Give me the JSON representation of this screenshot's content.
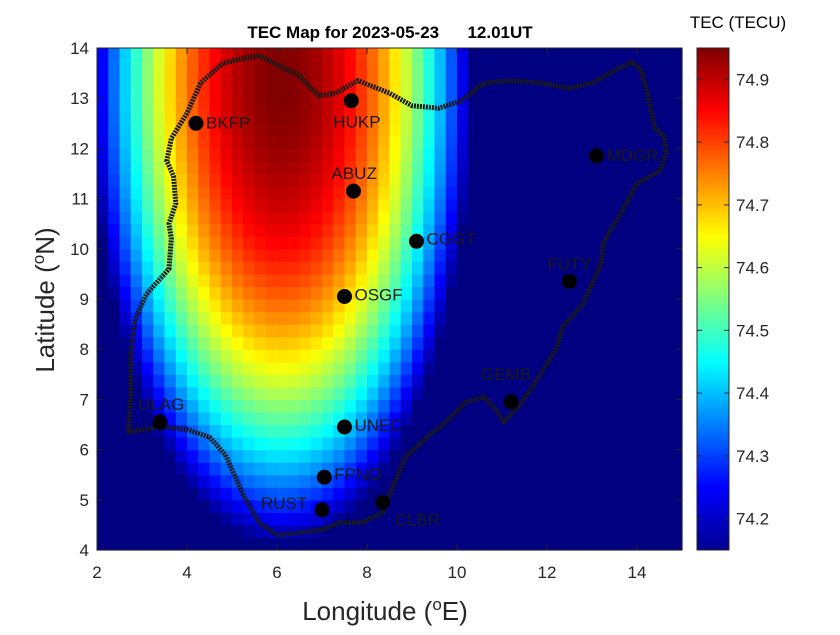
{
  "chart_data": {
    "type": "heatmap",
    "title": "TEC Map for 2023-05-23      12.01UT",
    "xlabel": "Longitude (",
    "xlabel_sup": "o",
    "xlabel_tail": "E)",
    "ylabel": "Latitude (",
    "ylabel_sup": "o",
    "ylabel_tail": "N)",
    "xlim": [
      2,
      15
    ],
    "ylim": [
      4,
      14
    ],
    "xticks": [
      2,
      4,
      6,
      8,
      10,
      12,
      14
    ],
    "yticks": [
      4,
      5,
      6,
      7,
      8,
      9,
      10,
      11,
      12,
      13,
      14
    ],
    "colorbar": {
      "label": "TEC (TECU)",
      "min": 74.15,
      "max": 74.95,
      "ticks": [
        74.2,
        74.3,
        74.4,
        74.5,
        74.6,
        74.7,
        74.8,
        74.9
      ],
      "colormap": "jet"
    },
    "field": {
      "peak_lon": 6.1,
      "peak_lat": 13.4,
      "peak_value": 74.95
    },
    "stations": [
      {
        "name": "BKFP",
        "lon": 4.2,
        "lat": 12.5
      },
      {
        "name": "HUKP",
        "lon": 7.65,
        "lat": 12.95
      },
      {
        "name": "ABUZ",
        "lon": 7.7,
        "lat": 11.15
      },
      {
        "name": "MDGR",
        "lon": 13.1,
        "lat": 11.85
      },
      {
        "name": "CGGT",
        "lon": 9.1,
        "lat": 10.15
      },
      {
        "name": "FUTY",
        "lon": 12.5,
        "lat": 9.35
      },
      {
        "name": "OSGF",
        "lon": 7.5,
        "lat": 9.05
      },
      {
        "name": "GEMB",
        "lon": 11.2,
        "lat": 6.95
      },
      {
        "name": "ULAG",
        "lon": 3.4,
        "lat": 6.55
      },
      {
        "name": "UNEC",
        "lon": 7.5,
        "lat": 6.45
      },
      {
        "name": "FPNO",
        "lon": 7.05,
        "lat": 5.45
      },
      {
        "name": "RUST",
        "lon": 7.0,
        "lat": 4.8
      },
      {
        "name": "CLBR",
        "lon": 8.35,
        "lat": 4.95
      }
    ],
    "boundary": [
      [
        2.7,
        6.35
      ],
      [
        2.75,
        7.1
      ],
      [
        2.75,
        7.9
      ],
      [
        2.85,
        8.6
      ],
      [
        3.1,
        9.1
      ],
      [
        3.6,
        9.6
      ],
      [
        3.65,
        10.2
      ],
      [
        3.6,
        10.5
      ],
      [
        3.75,
        10.9
      ],
      [
        3.7,
        11.45
      ],
      [
        3.55,
        11.75
      ],
      [
        3.65,
        12.2
      ],
      [
        4.0,
        12.7
      ],
      [
        4.15,
        13.0
      ],
      [
        4.3,
        13.3
      ],
      [
        4.8,
        13.7
      ],
      [
        5.3,
        13.8
      ],
      [
        5.6,
        13.85
      ],
      [
        6.15,
        13.6
      ],
      [
        6.5,
        13.45
      ],
      [
        6.75,
        13.2
      ],
      [
        6.95,
        13.05
      ],
      [
        7.3,
        13.1
      ],
      [
        7.8,
        13.35
      ],
      [
        8.5,
        13.1
      ],
      [
        9.0,
        12.85
      ],
      [
        9.6,
        12.8
      ],
      [
        10.1,
        12.95
      ],
      [
        10.6,
        13.3
      ],
      [
        11.2,
        13.35
      ],
      [
        11.9,
        13.3
      ],
      [
        12.5,
        13.2
      ],
      [
        13.0,
        13.3
      ],
      [
        13.6,
        13.6
      ],
      [
        13.9,
        13.72
      ],
      [
        14.1,
        13.55
      ],
      [
        14.25,
        13.0
      ],
      [
        14.4,
        12.4
      ],
      [
        14.6,
        12.25
      ],
      [
        14.65,
        11.9
      ],
      [
        14.5,
        11.55
      ],
      [
        14.0,
        11.3
      ],
      [
        13.7,
        10.8
      ],
      [
        13.4,
        10.35
      ],
      [
        13.25,
        10.1
      ],
      [
        13.2,
        9.7
      ],
      [
        13.0,
        9.3
      ],
      [
        12.8,
        8.9
      ],
      [
        12.35,
        8.45
      ],
      [
        12.2,
        8.0
      ],
      [
        11.85,
        7.5
      ],
      [
        11.6,
        7.15
      ],
      [
        11.35,
        6.85
      ],
      [
        11.05,
        6.55
      ],
      [
        10.85,
        6.8
      ],
      [
        10.6,
        7.05
      ],
      [
        10.2,
        6.95
      ],
      [
        9.7,
        6.5
      ],
      [
        9.4,
        6.3
      ],
      [
        8.85,
        5.85
      ],
      [
        8.5,
        5.1
      ],
      [
        8.35,
        4.75
      ],
      [
        7.9,
        4.55
      ],
      [
        7.4,
        4.55
      ],
      [
        7.0,
        4.4
      ],
      [
        6.6,
        4.35
      ],
      [
        6.0,
        4.3
      ],
      [
        5.6,
        4.55
      ],
      [
        5.25,
        5.1
      ],
      [
        5.0,
        5.6
      ],
      [
        4.85,
        5.9
      ],
      [
        4.5,
        6.25
      ],
      [
        4.0,
        6.4
      ],
      [
        3.5,
        6.45
      ],
      [
        3.0,
        6.4
      ],
      [
        2.7,
        6.35
      ]
    ]
  }
}
